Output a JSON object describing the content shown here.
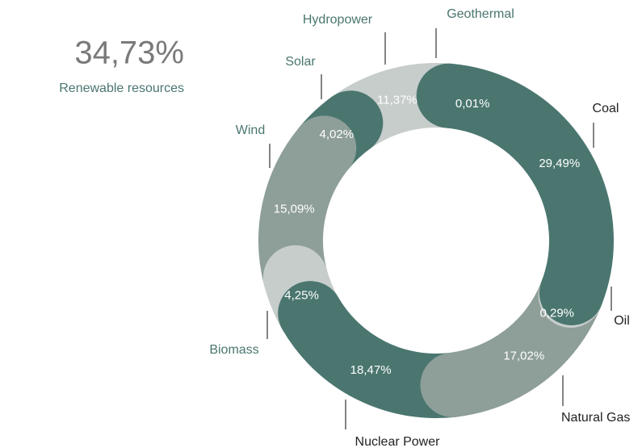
{
  "chart_data": {
    "type": "donut",
    "summary": {
      "value_label": "34,73%",
      "label": "Renewable resources"
    },
    "categories": [
      "Coal",
      "Oil",
      "Natural Gas",
      "Nuclear Power",
      "Biomass",
      "Wind",
      "Solar",
      "Hydropower",
      "Geothermal"
    ],
    "values": [
      29.49,
      0.29,
      17.02,
      18.47,
      4.25,
      15.09,
      4.02,
      11.37,
      0.01
    ],
    "value_labels": [
      "29,49%",
      "0,29%",
      "17,02%",
      "18,47%",
      "4,25%",
      "15,09%",
      "4,02%",
      "11,37%",
      "0,01%"
    ],
    "colors": [
      "#4a766f",
      "#c6cdcb",
      "#8e9e99",
      "#4a766f",
      "#c6cdcb",
      "#8e9e99",
      "#4a766f",
      "#c6cdcb",
      "#8e9e99"
    ],
    "label_colors": [
      "#222222",
      "#222222",
      "#222222",
      "#222222",
      "#4a766f",
      "#4a766f",
      "#4a766f",
      "#4a766f",
      "#4a766f"
    ]
  }
}
